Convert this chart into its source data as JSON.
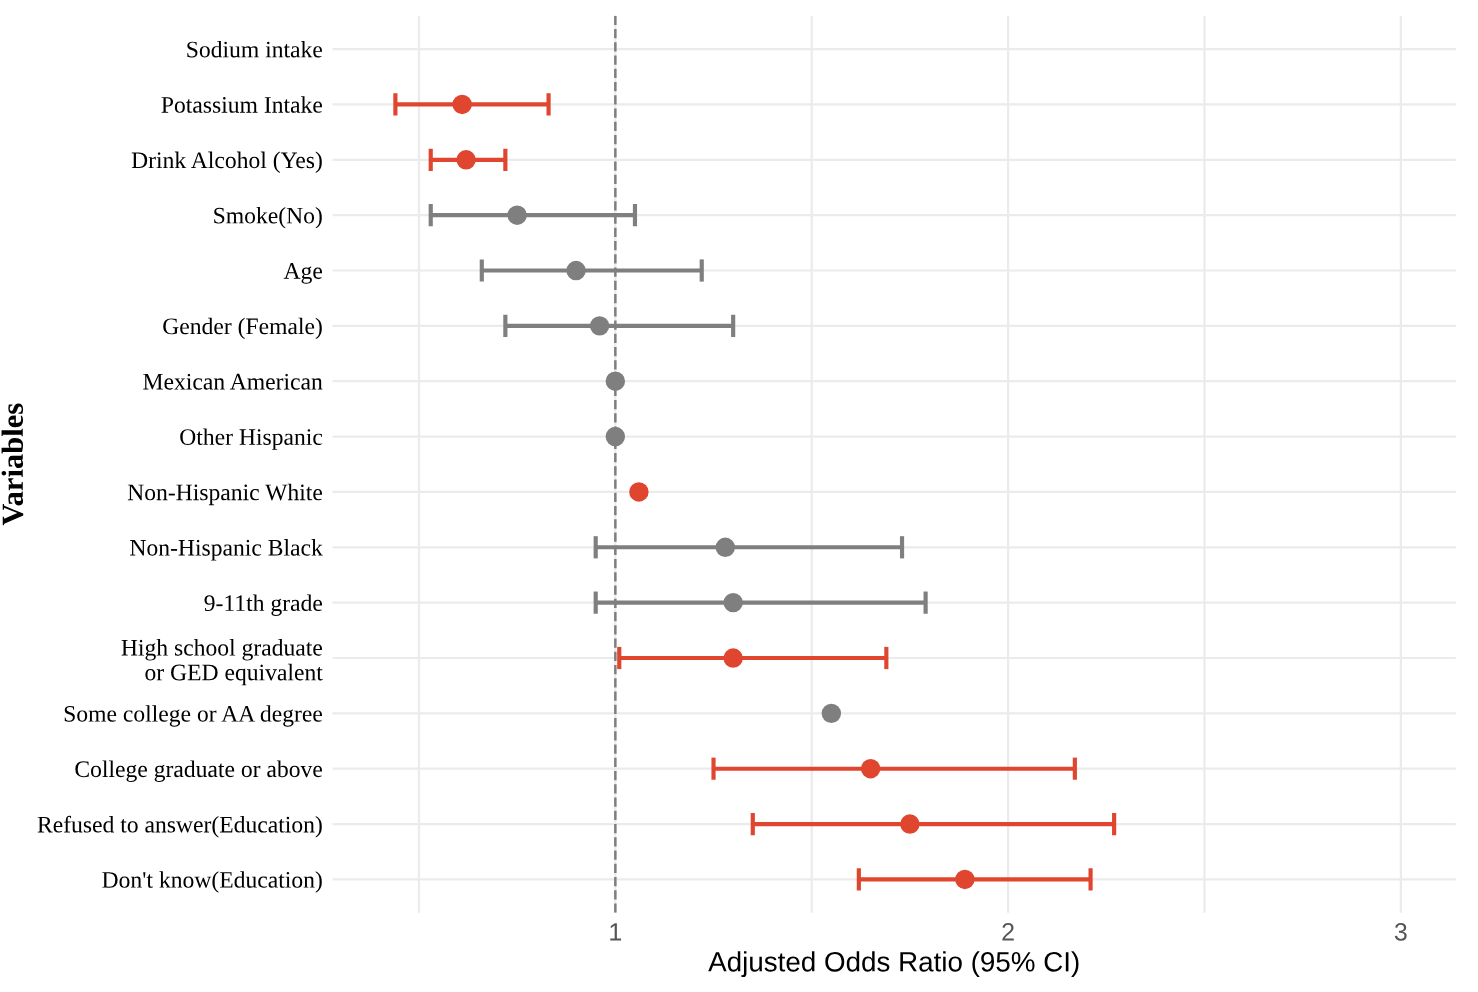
{
  "chart_data": {
    "type": "scatter",
    "orientation": "horizontal",
    "xlabel": "Adjusted Odds Ratio (95% CI)",
    "ylabel": "Variables",
    "categories": [
      "Sodium intake",
      "Potassium Intake",
      "Drink Alcohol (Yes)",
      "Smoke(No)",
      "Age",
      "Gender (Female)",
      "Mexican American",
      "Other Hispanic",
      "Non-Hispanic White",
      "Non-Hispanic Black",
      "9-11th grade",
      "High school graduate\nor GED equivalent",
      "Some college or AA degree",
      "College graduate or above",
      "Refused to answer(Education)",
      "Don't know(Education)"
    ],
    "values": [
      null,
      0.61,
      0.62,
      0.75,
      0.9,
      0.96,
      1.0,
      1.0,
      1.06,
      1.28,
      1.3,
      1.3,
      1.55,
      1.65,
      1.75,
      1.89
    ],
    "errors": [
      null,
      [
        0.44,
        0.83
      ],
      [
        0.53,
        0.72
      ],
      [
        0.53,
        1.05
      ],
      [
        0.66,
        1.22
      ],
      [
        0.72,
        1.3
      ],
      null,
      null,
      null,
      [
        0.95,
        1.73
      ],
      [
        0.95,
        1.79
      ],
      [
        1.01,
        1.69
      ],
      null,
      [
        1.25,
        2.17
      ],
      [
        1.35,
        2.27
      ],
      [
        1.62,
        2.21
      ]
    ],
    "colors": [
      "#7f7f7f",
      "#e0462f",
      "#e0462f",
      "#7f7f7f",
      "#7f7f7f",
      "#7f7f7f",
      "#7f7f7f",
      "#7f7f7f",
      "#e0462f",
      "#7f7f7f",
      "#7f7f7f",
      "#e0462f",
      "#7f7f7f",
      "#e0462f",
      "#e0462f",
      "#e0462f"
    ],
    "xlim": [
      0.28,
      3.14
    ],
    "xticks": [
      {
        "value": 0.5,
        "label": null
      },
      1,
      {
        "value": 1.5,
        "label": null
      },
      2,
      {
        "value": 2.5,
        "label": null
      },
      3
    ],
    "ref_lines": [
      {
        "axis": "x",
        "value": 1,
        "color": "#7f7f7f",
        "line_style": "dashed"
      }
    ],
    "grid": true,
    "marker": "circle",
    "legend": false
  }
}
